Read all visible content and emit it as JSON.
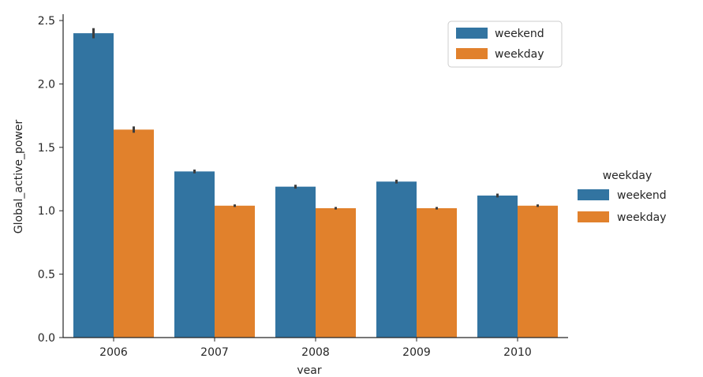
{
  "chart_data": {
    "type": "bar",
    "xlabel": "year",
    "ylabel": "Global_active_power",
    "categories": [
      "2006",
      "2007",
      "2008",
      "2009",
      "2010"
    ],
    "series": [
      {
        "name": "weekend",
        "color": "#3274a1",
        "values": [
          2.4,
          1.31,
          1.19,
          1.23,
          1.12
        ],
        "error": [
          0.04,
          0.015,
          0.015,
          0.015,
          0.015
        ]
      },
      {
        "name": "weekday",
        "color": "#e1812c",
        "values": [
          1.64,
          1.04,
          1.02,
          1.02,
          1.04
        ],
        "error": [
          0.025,
          0.01,
          0.01,
          0.01,
          0.01
        ]
      }
    ],
    "ylim": [
      0,
      2.55
    ],
    "yticks": [
      "0.0",
      "0.5",
      "1.0",
      "1.5",
      "2.0",
      "2.5"
    ],
    "legends": [
      {
        "title": "",
        "placement": "top-right inside plot",
        "entries": [
          "weekend",
          "weekday"
        ]
      },
      {
        "title": "weekday",
        "placement": "right outside plot",
        "entries": [
          "weekend",
          "weekday"
        ]
      }
    ],
    "grid": false
  }
}
